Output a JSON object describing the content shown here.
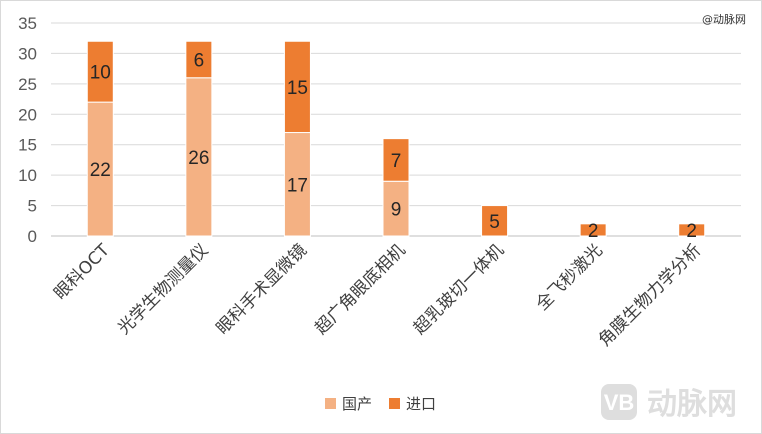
{
  "credit": "@动脉网",
  "watermark": {
    "logo_text": "VB",
    "name": "动脉网"
  },
  "legend": [
    {
      "label": "国产",
      "color": "#F4B183"
    },
    {
      "label": "进口",
      "color": "#ED7D31"
    }
  ],
  "chart_data": {
    "type": "bar",
    "stacked": true,
    "categories": [
      "眼科OCT",
      "光学生物测量仪",
      "眼科手术显微镜",
      "超广角眼底相机",
      "超乳玻切一体机",
      "全飞秒激光",
      "角膜生物力学分析"
    ],
    "series": [
      {
        "name": "国产",
        "values": [
          22,
          26,
          17,
          9,
          0,
          0,
          0
        ],
        "color": "#F4B183"
      },
      {
        "name": "进口",
        "values": [
          10,
          6,
          15,
          7,
          5,
          2,
          2
        ],
        "color": "#ED7D31"
      }
    ],
    "ylim": [
      0,
      35
    ],
    "yticks": [
      0,
      5,
      10,
      15,
      20,
      25,
      30,
      35
    ],
    "grid": true,
    "legend_position": "bottom",
    "title": "",
    "xlabel": "",
    "ylabel": ""
  }
}
